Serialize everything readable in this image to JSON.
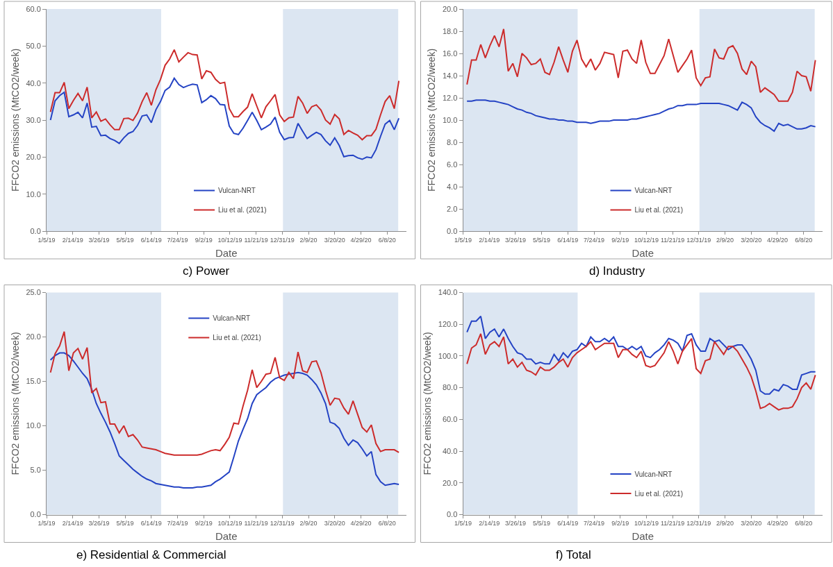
{
  "chart_data": [
    {
      "type": "line",
      "title": "c) Power",
      "xlabel": "Date",
      "ylabel": "FFCO2 emissions (MtCO2/week)",
      "legend": "bottom",
      "line_style": "solid",
      "x": [
        "2019-01-11",
        "2019-01-18",
        "2019-01-25",
        "2019-02-01",
        "2019-02-08",
        "2019-02-15",
        "2019-02-22",
        "2019-03-01",
        "2019-03-08",
        "2019-03-15",
        "2019-03-22",
        "2019-03-29",
        "2019-04-05",
        "2019-04-12",
        "2019-04-19",
        "2019-04-26",
        "2019-05-03",
        "2019-05-10",
        "2019-05-17",
        "2019-05-24",
        "2019-05-31",
        "2019-06-07",
        "2019-06-14",
        "2019-06-21",
        "2019-06-28",
        "2019-07-05",
        "2019-07-12",
        "2019-07-19",
        "2019-07-26",
        "2019-08-02",
        "2019-08-09",
        "2019-08-16",
        "2019-08-23",
        "2019-08-30",
        "2019-09-06",
        "2019-09-13",
        "2019-09-20",
        "2019-09-27",
        "2019-10-04",
        "2019-10-11",
        "2019-10-18",
        "2019-10-25",
        "2019-11-01",
        "2019-11-08",
        "2019-11-15",
        "2019-11-22",
        "2019-11-29",
        "2019-12-06",
        "2019-12-13",
        "2019-12-20",
        "2019-12-27",
        "2020-01-03",
        "2020-01-10",
        "2020-01-17",
        "2020-01-24",
        "2020-01-31",
        "2020-02-07",
        "2020-02-14",
        "2020-02-21",
        "2020-02-28",
        "2020-03-06",
        "2020-03-13",
        "2020-03-20",
        "2020-03-27",
        "2020-04-03",
        "2020-04-10",
        "2020-04-17",
        "2020-04-24",
        "2020-05-01",
        "2020-05-08",
        "2020-05-15",
        "2020-05-22",
        "2020-05-29",
        "2020-06-05",
        "2020-06-12",
        "2020-06-19",
        "2020-06-26"
      ],
      "series": [
        {
          "name": "Vulcan-NRT",
          "color": "#2443c4",
          "values": [
            30.0,
            35.2,
            36.6,
            37.5,
            30.9,
            31.4,
            32.1,
            30.6,
            34.6,
            28.1,
            28.3,
            25.8,
            25.9,
            25.0,
            24.5,
            23.7,
            25.2,
            26.4,
            26.9,
            28.6,
            31.1,
            31.4,
            29.3,
            32.8,
            35.0,
            38.0,
            38.9,
            41.3,
            39.6,
            38.8,
            39.3,
            39.7,
            39.5,
            34.7,
            35.5,
            36.6,
            35.8,
            34.2,
            34.1,
            28.4,
            26.4,
            26.1,
            27.8,
            29.9,
            32.1,
            29.9,
            27.4,
            28.1,
            28.9,
            30.8,
            26.7,
            24.7,
            25.2,
            25.3,
            29.1,
            27.0,
            25.0,
            25.9,
            26.7,
            26.1,
            24.4,
            23.2,
            25.2,
            23.1,
            20.1,
            20.4,
            20.5,
            19.8,
            19.4,
            20.0,
            19.8,
            22.0,
            25.6,
            28.9,
            29.9,
            27.4,
            30.5
          ]
        },
        {
          "name": "Liu et al. (2021)",
          "color": "#cc2b2b",
          "values": [
            32.2,
            37.4,
            37.4,
            40.2,
            33.1,
            35.3,
            37.2,
            35.2,
            38.9,
            30.6,
            32.2,
            29.7,
            30.3,
            28.7,
            27.4,
            27.4,
            30.4,
            30.5,
            29.9,
            31.9,
            35.0,
            37.4,
            34.0,
            38.2,
            41.0,
            44.8,
            46.5,
            49.0,
            45.7,
            47.0,
            48.2,
            47.7,
            47.6,
            41.1,
            43.3,
            42.9,
            41.0,
            39.9,
            40.2,
            33.1,
            30.9,
            30.9,
            32.3,
            33.5,
            37.1,
            33.8,
            30.6,
            33.6,
            35.2,
            36.9,
            31.4,
            29.6,
            30.6,
            30.8,
            36.4,
            34.6,
            31.8,
            33.6,
            34.1,
            32.7,
            30.0,
            28.9,
            31.5,
            30.3,
            26.1,
            27.2,
            26.5,
            25.9,
            24.7,
            25.8,
            25.8,
            27.5,
            31.4,
            35.0,
            36.6,
            33.1,
            40.6
          ]
        }
      ],
      "xlim": [
        "2019-01-05",
        "2020-07-07"
      ],
      "xticks": [
        {
          "value": "2019-01-05",
          "label": "1/5/19"
        },
        {
          "value": "2019-02-14",
          "label": "2/14/19"
        },
        {
          "value": "2019-03-26",
          "label": "3/26/19"
        },
        {
          "value": "2019-05-05",
          "label": "5/5/19"
        },
        {
          "value": "2019-06-14",
          "label": "6/14/19"
        },
        {
          "value": "2019-07-24",
          "label": "7/24/19"
        },
        {
          "value": "2019-09-02",
          "label": "9/2/19"
        },
        {
          "value": "2019-10-12",
          "label": "10/12/19"
        },
        {
          "value": "2019-11-21",
          "label": "11/21/19"
        },
        {
          "value": "2019-12-31",
          "label": "12/31/19"
        },
        {
          "value": "2020-02-09",
          "label": "2/9/20"
        },
        {
          "value": "2020-03-20",
          "label": "3/20/20"
        },
        {
          "value": "2020-04-29",
          "label": "4/29/20"
        },
        {
          "value": "2020-06-08",
          "label": "6/8/20"
        }
      ],
      "ylim": [
        0,
        60
      ],
      "yticks": [
        {
          "value": 0,
          "label": "0.0"
        },
        {
          "value": 10,
          "label": "10.0"
        },
        {
          "value": 20,
          "label": "20.0"
        },
        {
          "value": 30,
          "label": "30.0"
        },
        {
          "value": 40,
          "label": "40.0"
        },
        {
          "value": 50,
          "label": "50.0"
        },
        {
          "value": 60,
          "label": "60.0"
        }
      ],
      "bands": [
        {
          "axis": "x",
          "from": "2019-01-05",
          "to": "2019-06-29",
          "color": "#dce6f2"
        },
        {
          "axis": "x",
          "from": "2020-01-01",
          "to": "2020-06-25",
          "color": "#dce6f2"
        }
      ]
    },
    {
      "type": "line",
      "title": "d) Industry",
      "xlabel": "Date",
      "ylabel": "FFCO2 emissions (MtCO2/week)",
      "legend": "bottom",
      "line_style": "solid",
      "x": [
        "2019-01-11",
        "2019-01-18",
        "2019-01-25",
        "2019-02-01",
        "2019-02-08",
        "2019-02-15",
        "2019-02-22",
        "2019-03-01",
        "2019-03-08",
        "2019-03-15",
        "2019-03-22",
        "2019-03-29",
        "2019-04-05",
        "2019-04-12",
        "2019-04-19",
        "2019-04-26",
        "2019-05-03",
        "2019-05-10",
        "2019-05-17",
        "2019-05-24",
        "2019-05-31",
        "2019-06-07",
        "2019-06-14",
        "2019-06-21",
        "2019-06-28",
        "2019-07-05",
        "2019-07-12",
        "2019-07-19",
        "2019-07-26",
        "2019-08-02",
        "2019-08-09",
        "2019-08-16",
        "2019-08-23",
        "2019-08-30",
        "2019-09-06",
        "2019-09-13",
        "2019-09-20",
        "2019-09-27",
        "2019-10-04",
        "2019-10-11",
        "2019-10-18",
        "2019-10-25",
        "2019-11-01",
        "2019-11-08",
        "2019-11-15",
        "2019-11-22",
        "2019-11-29",
        "2019-12-06",
        "2019-12-13",
        "2019-12-20",
        "2019-12-27",
        "2020-01-03",
        "2020-01-10",
        "2020-01-17",
        "2020-01-24",
        "2020-01-31",
        "2020-02-07",
        "2020-02-14",
        "2020-02-21",
        "2020-02-28",
        "2020-03-06",
        "2020-03-13",
        "2020-03-20",
        "2020-03-27",
        "2020-04-03",
        "2020-04-10",
        "2020-04-17",
        "2020-04-24",
        "2020-05-01",
        "2020-05-08",
        "2020-05-15",
        "2020-05-22",
        "2020-05-29",
        "2020-06-05",
        "2020-06-12",
        "2020-06-19",
        "2020-06-26"
      ],
      "series": [
        {
          "name": "Vulcan-NRT",
          "color": "#2443c4",
          "values": [
            11.7,
            11.7,
            11.8,
            11.8,
            11.8,
            11.7,
            11.7,
            11.6,
            11.5,
            11.4,
            11.2,
            11.0,
            10.9,
            10.7,
            10.6,
            10.4,
            10.3,
            10.2,
            10.1,
            10.1,
            10.0,
            10.0,
            9.9,
            9.9,
            9.8,
            9.8,
            9.8,
            9.7,
            9.8,
            9.9,
            9.9,
            9.9,
            10.0,
            10.0,
            10.0,
            10.0,
            10.1,
            10.1,
            10.2,
            10.3,
            10.4,
            10.5,
            10.6,
            10.8,
            11.0,
            11.1,
            11.3,
            11.3,
            11.4,
            11.4,
            11.4,
            11.5,
            11.5,
            11.5,
            11.5,
            11.5,
            11.4,
            11.3,
            11.1,
            10.9,
            11.6,
            11.4,
            11.1,
            10.3,
            9.8,
            9.5,
            9.3,
            9.0,
            9.7,
            9.5,
            9.6,
            9.4,
            9.2,
            9.2,
            9.3,
            9.5,
            9.4
          ]
        },
        {
          "name": "Liu et al. (2021)",
          "color": "#cc2b2b",
          "values": [
            13.2,
            15.4,
            15.4,
            16.8,
            15.6,
            16.7,
            17.6,
            16.6,
            18.2,
            14.4,
            15.1,
            13.9,
            16.0,
            15.6,
            15.0,
            15.1,
            15.5,
            14.3,
            14.1,
            15.2,
            16.6,
            15.4,
            14.3,
            16.2,
            17.2,
            15.5,
            14.8,
            15.5,
            14.5,
            15.1,
            16.1,
            16.0,
            15.9,
            13.8,
            16.2,
            16.3,
            15.5,
            15.1,
            17.2,
            15.2,
            14.2,
            14.2,
            15.0,
            15.8,
            17.3,
            15.8,
            14.3,
            14.9,
            15.5,
            16.3,
            13.8,
            13.1,
            13.8,
            13.9,
            16.4,
            15.6,
            15.5,
            16.5,
            16.7,
            16.0,
            14.6,
            14.1,
            15.3,
            14.8,
            12.5,
            12.9,
            12.6,
            12.3,
            11.7,
            11.7,
            11.7,
            12.5,
            14.4,
            14.0,
            13.9,
            12.6,
            15.4
          ]
        }
      ],
      "xlim": [
        "2019-01-05",
        "2020-07-07"
      ],
      "xticks": [
        {
          "value": "2019-01-05",
          "label": "1/5/19"
        },
        {
          "value": "2019-02-14",
          "label": "2/14/19"
        },
        {
          "value": "2019-03-26",
          "label": "3/26/19"
        },
        {
          "value": "2019-05-05",
          "label": "5/5/19"
        },
        {
          "value": "2019-06-14",
          "label": "6/14/19"
        },
        {
          "value": "2019-07-24",
          "label": "7/24/19"
        },
        {
          "value": "2019-09-02",
          "label": "9/2/19"
        },
        {
          "value": "2019-10-12",
          "label": "10/12/19"
        },
        {
          "value": "2019-11-21",
          "label": "11/21/19"
        },
        {
          "value": "2019-12-31",
          "label": "12/31/19"
        },
        {
          "value": "2020-02-09",
          "label": "2/9/20"
        },
        {
          "value": "2020-03-20",
          "label": "3/20/20"
        },
        {
          "value": "2020-04-29",
          "label": "4/29/20"
        },
        {
          "value": "2020-06-08",
          "label": "6/8/20"
        }
      ],
      "ylim": [
        0,
        20
      ],
      "yticks": [
        {
          "value": 0,
          "label": "0.0"
        },
        {
          "value": 2,
          "label": "2.0"
        },
        {
          "value": 4,
          "label": "4.0"
        },
        {
          "value": 6,
          "label": "6.0"
        },
        {
          "value": 8,
          "label": "8.0"
        },
        {
          "value": 10,
          "label": "10.0"
        },
        {
          "value": 12,
          "label": "12.0"
        },
        {
          "value": 14,
          "label": "14.0"
        },
        {
          "value": 16,
          "label": "16.0"
        },
        {
          "value": 18,
          "label": "18.0"
        },
        {
          "value": 20,
          "label": "20.0"
        }
      ],
      "bands": [
        {
          "axis": "x",
          "from": "2019-01-05",
          "to": "2019-06-29",
          "color": "#dce6f2"
        },
        {
          "axis": "x",
          "from": "2020-01-01",
          "to": "2020-06-25",
          "color": "#dce6f2"
        }
      ]
    },
    {
      "type": "line",
      "title": "e) Residential & Commercial",
      "xlabel": "Date",
      "ylabel": "FFCO2 emissions (MtCO2/week)",
      "legend": "top",
      "line_style": "solid",
      "x": [
        "2019-01-11",
        "2019-01-18",
        "2019-01-25",
        "2019-02-01",
        "2019-02-08",
        "2019-02-15",
        "2019-02-22",
        "2019-03-01",
        "2019-03-08",
        "2019-03-15",
        "2019-03-22",
        "2019-03-29",
        "2019-04-05",
        "2019-04-12",
        "2019-04-19",
        "2019-04-26",
        "2019-05-03",
        "2019-05-10",
        "2019-05-17",
        "2019-05-24",
        "2019-05-31",
        "2019-06-07",
        "2019-06-14",
        "2019-06-21",
        "2019-06-28",
        "2019-07-05",
        "2019-07-12",
        "2019-07-19",
        "2019-07-26",
        "2019-08-02",
        "2019-08-09",
        "2019-08-16",
        "2019-08-23",
        "2019-08-30",
        "2019-09-06",
        "2019-09-13",
        "2019-09-20",
        "2019-09-27",
        "2019-10-04",
        "2019-10-11",
        "2019-10-18",
        "2019-10-25",
        "2019-11-01",
        "2019-11-08",
        "2019-11-15",
        "2019-11-22",
        "2019-11-29",
        "2019-12-06",
        "2019-12-13",
        "2019-12-20",
        "2019-12-27",
        "2020-01-03",
        "2020-01-10",
        "2020-01-17",
        "2020-01-24",
        "2020-01-31",
        "2020-02-07",
        "2020-02-14",
        "2020-02-21",
        "2020-02-28",
        "2020-03-06",
        "2020-03-13",
        "2020-03-20",
        "2020-03-27",
        "2020-04-03",
        "2020-04-10",
        "2020-04-17",
        "2020-04-24",
        "2020-05-01",
        "2020-05-08",
        "2020-05-15",
        "2020-05-22",
        "2020-05-29",
        "2020-06-05",
        "2020-06-12",
        "2020-06-19",
        "2020-06-26"
      ],
      "series": [
        {
          "name": "Vulcan-NRT",
          "color": "#2443c4",
          "values": [
            17.4,
            17.9,
            18.2,
            18.2,
            17.9,
            17.3,
            16.6,
            15.9,
            15.3,
            14.1,
            12.5,
            11.4,
            10.4,
            9.3,
            8.0,
            6.6,
            6.1,
            5.6,
            5.1,
            4.7,
            4.3,
            4.0,
            3.8,
            3.5,
            3.4,
            3.3,
            3.2,
            3.1,
            3.1,
            3.0,
            3.0,
            3.0,
            3.1,
            3.1,
            3.2,
            3.3,
            3.7,
            4.0,
            4.4,
            4.8,
            6.5,
            8.3,
            9.6,
            10.8,
            12.5,
            13.5,
            13.9,
            14.3,
            14.9,
            15.3,
            15.5,
            15.7,
            15.8,
            15.9,
            16.0,
            15.9,
            15.7,
            15.2,
            14.6,
            13.7,
            12.5,
            10.4,
            10.2,
            9.7,
            8.6,
            7.8,
            8.4,
            8.1,
            7.4,
            6.6,
            7.1,
            4.5,
            3.7,
            3.3,
            3.4,
            3.5,
            3.4
          ]
        },
        {
          "name": "Liu et al. (2021)",
          "color": "#cc2b2b",
          "values": [
            16.0,
            18.1,
            19.0,
            20.6,
            16.2,
            18.2,
            18.7,
            17.5,
            18.8,
            13.7,
            14.2,
            12.6,
            12.7,
            10.2,
            10.2,
            9.2,
            10.0,
            8.8,
            9.0,
            8.4,
            7.6,
            7.5,
            7.4,
            7.3,
            7.1,
            6.9,
            6.8,
            6.7,
            6.7,
            6.7,
            6.7,
            6.7,
            6.7,
            6.8,
            7.0,
            7.2,
            7.3,
            7.2,
            7.9,
            8.7,
            10.3,
            10.2,
            12.2,
            14.0,
            16.3,
            14.3,
            15.0,
            15.8,
            15.9,
            17.7,
            15.4,
            15.1,
            16.0,
            15.3,
            18.3,
            16.2,
            16.0,
            17.2,
            17.3,
            16.0,
            14.0,
            12.3,
            13.1,
            13.0,
            12.0,
            11.3,
            12.8,
            11.3,
            9.8,
            9.3,
            10.1,
            8.0,
            7.1,
            7.3,
            7.3,
            7.3,
            7.0
          ]
        }
      ],
      "xlim": [
        "2019-01-05",
        "2020-07-07"
      ],
      "xticks": [
        {
          "value": "2019-01-05",
          "label": "1/5/19"
        },
        {
          "value": "2019-02-14",
          "label": "2/14/19"
        },
        {
          "value": "2019-03-26",
          "label": "3/26/19"
        },
        {
          "value": "2019-05-05",
          "label": "5/5/19"
        },
        {
          "value": "2019-06-14",
          "label": "6/14/19"
        },
        {
          "value": "2019-07-24",
          "label": "7/24/19"
        },
        {
          "value": "2019-09-02",
          "label": "9/2/19"
        },
        {
          "value": "2019-10-12",
          "label": "10/12/19"
        },
        {
          "value": "2019-11-21",
          "label": "11/21/19"
        },
        {
          "value": "2019-12-31",
          "label": "12/31/19"
        },
        {
          "value": "2020-02-09",
          "label": "2/9/20"
        },
        {
          "value": "2020-03-20",
          "label": "3/20/20"
        },
        {
          "value": "2020-04-29",
          "label": "4/29/20"
        },
        {
          "value": "2020-06-08",
          "label": "6/8/20"
        }
      ],
      "ylim": [
        0,
        25
      ],
      "yticks": [
        {
          "value": 0,
          "label": "0.0"
        },
        {
          "value": 5,
          "label": "5.0"
        },
        {
          "value": 10,
          "label": "10.0"
        },
        {
          "value": 15,
          "label": "15.0"
        },
        {
          "value": 20,
          "label": "20.0"
        },
        {
          "value": 25,
          "label": "25.0"
        }
      ],
      "bands": [
        {
          "axis": "x",
          "from": "2019-01-05",
          "to": "2019-06-29",
          "color": "#dce6f2"
        },
        {
          "axis": "x",
          "from": "2020-01-01",
          "to": "2020-06-25",
          "color": "#dce6f2"
        }
      ]
    },
    {
      "type": "line",
      "title": "f) Total",
      "xlabel": "Date",
      "ylabel": "FFCO2 emissions (MtCO2/week)",
      "legend": "bottom",
      "line_style": "solid",
      "x": [
        "2019-01-11",
        "2019-01-18",
        "2019-01-25",
        "2019-02-01",
        "2019-02-08",
        "2019-02-15",
        "2019-02-22",
        "2019-03-01",
        "2019-03-08",
        "2019-03-15",
        "2019-03-22",
        "2019-03-29",
        "2019-04-05",
        "2019-04-12",
        "2019-04-19",
        "2019-04-26",
        "2019-05-03",
        "2019-05-10",
        "2019-05-17",
        "2019-05-24",
        "2019-05-31",
        "2019-06-07",
        "2019-06-14",
        "2019-06-21",
        "2019-06-28",
        "2019-07-05",
        "2019-07-12",
        "2019-07-19",
        "2019-07-26",
        "2019-08-02",
        "2019-08-09",
        "2019-08-16",
        "2019-08-23",
        "2019-08-30",
        "2019-09-06",
        "2019-09-13",
        "2019-09-20",
        "2019-09-27",
        "2019-10-04",
        "2019-10-11",
        "2019-10-18",
        "2019-10-25",
        "2019-11-01",
        "2019-11-08",
        "2019-11-15",
        "2019-11-22",
        "2019-11-29",
        "2019-12-06",
        "2019-12-13",
        "2019-12-20",
        "2019-12-27",
        "2020-01-03",
        "2020-01-10",
        "2020-01-17",
        "2020-01-24",
        "2020-01-31",
        "2020-02-07",
        "2020-02-14",
        "2020-02-21",
        "2020-02-28",
        "2020-03-06",
        "2020-03-13",
        "2020-03-20",
        "2020-03-27",
        "2020-04-03",
        "2020-04-10",
        "2020-04-17",
        "2020-04-24",
        "2020-05-01",
        "2020-05-08",
        "2020-05-15",
        "2020-05-22",
        "2020-05-29",
        "2020-06-05",
        "2020-06-12",
        "2020-06-19",
        "2020-06-26"
      ],
      "series": [
        {
          "name": "Vulcan-NRT",
          "color": "#2443c4",
          "values": [
            115,
            122,
            122,
            125,
            111,
            115,
            117,
            112,
            117,
            111,
            106,
            102,
            101,
            98,
            98,
            95,
            96,
            95,
            95,
            101,
            97,
            102,
            99,
            103,
            104,
            108,
            106,
            112,
            109,
            109,
            111,
            109,
            112,
            106,
            106,
            104,
            106,
            104,
            106,
            100,
            99,
            102,
            104,
            107,
            111,
            110,
            108,
            103,
            113,
            114,
            107,
            103,
            103,
            111,
            109,
            110,
            107,
            104,
            106,
            107,
            107,
            103,
            98,
            91,
            78,
            76,
            76,
            79,
            78,
            82,
            81,
            79,
            79,
            88,
            89,
            90,
            90
          ]
        },
        {
          "name": "Liu et al. (2021)",
          "color": "#cc2b2b",
          "values": [
            95,
            105,
            107,
            114,
            101,
            107,
            109,
            106,
            112,
            95,
            98,
            93,
            96,
            91,
            90,
            88,
            93,
            91,
            91,
            93,
            96,
            98,
            93,
            99,
            102,
            104,
            106,
            109,
            104,
            106,
            108,
            108,
            108,
            99,
            104,
            104,
            101,
            99,
            103,
            94,
            93,
            94,
            98,
            102,
            109,
            103,
            95,
            103,
            107,
            111,
            92,
            89,
            97,
            98,
            109,
            105,
            101,
            106,
            106,
            103,
            98,
            93,
            87,
            78,
            67,
            68,
            70,
            68,
            66,
            67,
            67,
            68,
            73,
            80,
            83,
            79,
            88
          ]
        }
      ],
      "xlim": [
        "2019-01-05",
        "2020-07-07"
      ],
      "xticks": [
        {
          "value": "2019-01-05",
          "label": "1/5/19"
        },
        {
          "value": "2019-02-14",
          "label": "2/14/19"
        },
        {
          "value": "2019-03-26",
          "label": "3/26/19"
        },
        {
          "value": "2019-05-05",
          "label": "5/5/19"
        },
        {
          "value": "2019-06-14",
          "label": "6/14/19"
        },
        {
          "value": "2019-07-24",
          "label": "7/24/19"
        },
        {
          "value": "2019-09-02",
          "label": "9/2/19"
        },
        {
          "value": "2019-10-12",
          "label": "10/12/19"
        },
        {
          "value": "2019-11-21",
          "label": "11/21/19"
        },
        {
          "value": "2019-12-31",
          "label": "12/31/19"
        },
        {
          "value": "2020-02-09",
          "label": "2/9/20"
        },
        {
          "value": "2020-03-20",
          "label": "3/20/20"
        },
        {
          "value": "2020-04-29",
          "label": "4/29/20"
        },
        {
          "value": "2020-06-08",
          "label": "6/8/20"
        }
      ],
      "ylim": [
        0,
        140
      ],
      "yticks": [
        {
          "value": 0,
          "label": "0.0"
        },
        {
          "value": 20,
          "label": "20.0"
        },
        {
          "value": 40,
          "label": "40.0"
        },
        {
          "value": 60,
          "label": "60.0"
        },
        {
          "value": 80,
          "label": "80.0"
        },
        {
          "value": 100,
          "label": "100.0"
        },
        {
          "value": 120,
          "label": "120.0"
        },
        {
          "value": 140,
          "label": "140.0"
        }
      ],
      "bands": [
        {
          "axis": "x",
          "from": "2019-01-05",
          "to": "2019-06-29",
          "color": "#dce6f2"
        },
        {
          "axis": "x",
          "from": "2020-01-01",
          "to": "2020-06-25",
          "color": "#dce6f2"
        }
      ]
    }
  ]
}
